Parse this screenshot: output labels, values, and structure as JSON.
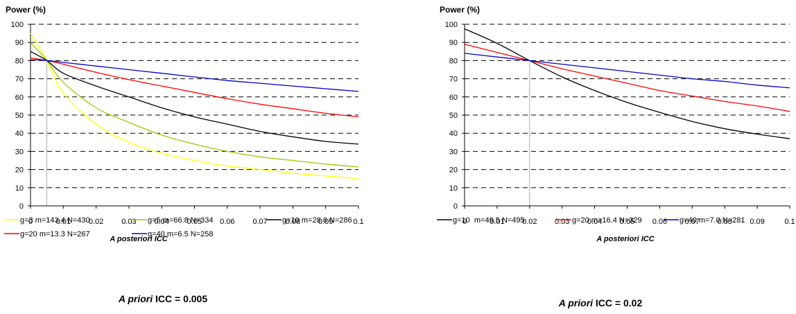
{
  "chart_data": [
    {
      "type": "line",
      "ylabel": "Power (%)",
      "xlabel": "A posteriori ICC",
      "caption_italic": "A priori",
      "caption_rest": " ICC = 0.005",
      "x_ticks": [
        "0",
        "0.01",
        "0.02",
        "0.03",
        "0.04",
        "0.05",
        "0.06",
        "0.07",
        "0.08",
        "0.09",
        "0.1"
      ],
      "y_ticks": [
        "0",
        "10",
        "20",
        "30",
        "40",
        "50",
        "60",
        "70",
        "80",
        "90",
        "100"
      ],
      "xlim": [
        0,
        0.1
      ],
      "ylim": [
        0,
        100
      ],
      "grid": "horizontal dashed",
      "reference_x": 0.005,
      "legend_position": "bottom",
      "x": [
        0,
        0.005,
        0.01,
        0.02,
        0.03,
        0.04,
        0.05,
        0.06,
        0.07,
        0.08,
        0.09,
        0.1
      ],
      "series": [
        {
          "name": "g=3 m=143.4 N=430",
          "color": "#ffff00",
          "values": [
            95,
            80,
            62,
            45,
            35,
            29,
            25,
            22,
            20,
            18,
            16.5,
            15
          ]
        },
        {
          "name": "g=5 m=66.8 N=334",
          "color": "#99cc00",
          "values": [
            90,
            80,
            68,
            54,
            46,
            39,
            34,
            30,
            27,
            25,
            23,
            21.5
          ]
        },
        {
          "name": "g=10 m=28.6 N=286",
          "color": "#000000",
          "values": [
            85,
            80,
            73,
            66,
            60,
            54,
            49,
            45,
            41,
            38,
            35.5,
            34
          ]
        },
        {
          "name": "g=20 m=13.3 N=267",
          "color": "#ff0000",
          "values": [
            81.5,
            80,
            78,
            73.5,
            69.5,
            66,
            62.5,
            59,
            56,
            53.5,
            51,
            49
          ]
        },
        {
          "name": "g=40 m=6.5 N=258",
          "color": "#0000cc",
          "values": [
            80.5,
            80,
            79,
            77,
            75,
            73,
            71,
            69,
            67.5,
            66,
            64.5,
            63
          ]
        }
      ]
    },
    {
      "type": "line",
      "ylabel": "Power (%)",
      "xlabel": "A posteriori ICC",
      "caption_italic": "A priori",
      "caption_rest": " ICC = 0.02",
      "x_ticks": [
        "0",
        "0.01",
        "0.02",
        "0.03",
        "0.04",
        "0.05",
        "0.06",
        "0.07",
        "0.08",
        "0.09",
        "0.1"
      ],
      "y_ticks": [
        "0",
        "10",
        "20",
        "30",
        "40",
        "50",
        "60",
        "70",
        "80",
        "90",
        "100"
      ],
      "xlim": [
        0,
        0.1
      ],
      "ylim": [
        0,
        100
      ],
      "grid": "horizontal dashed",
      "reference_x": 0.02,
      "legend_position": "bottom",
      "x": [
        0,
        0.01,
        0.02,
        0.03,
        0.04,
        0.05,
        0.06,
        0.07,
        0.08,
        0.09,
        0.1
      ],
      "series": [
        {
          "name": "g=10  m=49.5 N=495",
          "color": "#000000",
          "values": [
            97.5,
            89.5,
            80,
            71,
            63.5,
            57,
            51.5,
            46.5,
            42.5,
            39.5,
            37
          ]
        },
        {
          "name": "g=20 m=16.4 N=329",
          "color": "#ff0000",
          "values": [
            89,
            84.5,
            80,
            75.5,
            71.5,
            67.5,
            63.5,
            60.5,
            57.5,
            55,
            52
          ]
        },
        {
          "name": "g=40 m=7.0 N=281",
          "color": "#0000cc",
          "values": [
            84,
            82,
            80,
            78,
            76,
            74,
            72,
            70,
            68.5,
            66.5,
            65
          ]
        }
      ]
    }
  ]
}
